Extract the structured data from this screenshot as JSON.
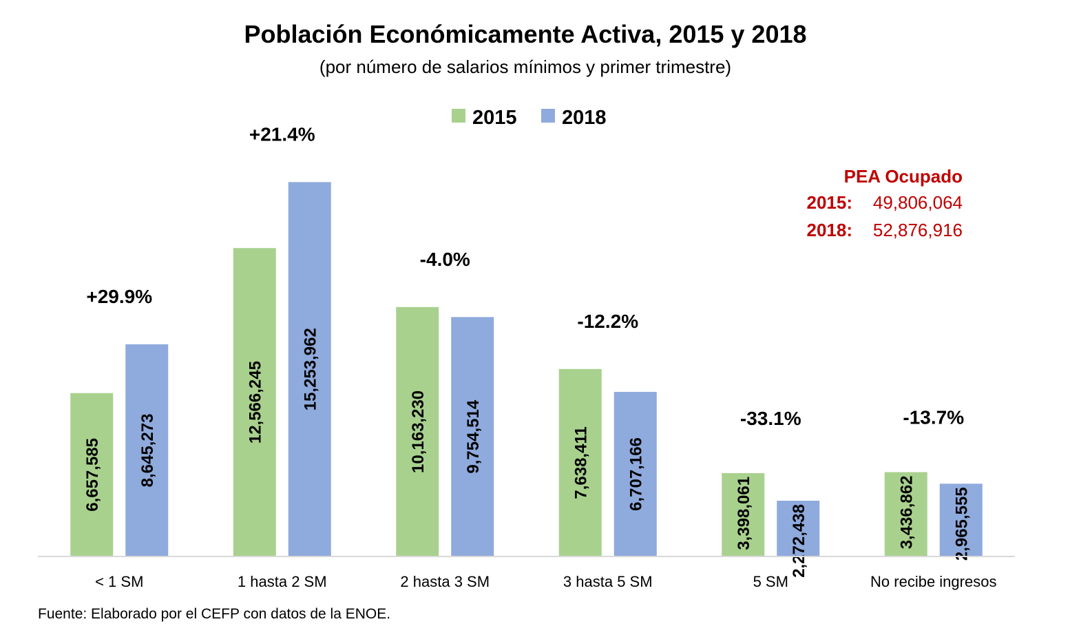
{
  "chart_data": {
    "type": "bar",
    "title": "Población Económicamente Activa, 2015 y 2018",
    "subtitle": "(por número de salarios mínimos y primer trimestre)",
    "categories": [
      "< 1 SM",
      "1 hasta 2 SM",
      "2 hasta 3 SM",
      "3 hasta 5 SM",
      "5 SM",
      "No recibe ingresos"
    ],
    "series": [
      {
        "name": "2015",
        "color": "#a9d18e",
        "values": [
          6657585,
          12566245,
          10163230,
          7638411,
          3398061,
          3436862
        ],
        "labels": [
          "6,657,585",
          "12,566,245",
          "10,163,230",
          "7,638,411",
          "3,398,061",
          "3,436,862"
        ]
      },
      {
        "name": "2018",
        "color": "#8faadc",
        "values": [
          8645273,
          15253962,
          9754514,
          6707166,
          2272438,
          2965555
        ],
        "labels": [
          "8,645,273",
          "15,253,962",
          "9,754,514",
          "6,707,166",
          "2,272,438",
          "2,965,555"
        ]
      }
    ],
    "changes": [
      "+29.9%",
      "+21.4%",
      "-4.0%",
      "-12.2%",
      "-33.1%",
      "-13.7%"
    ],
    "ylim": [
      0,
      16500000
    ],
    "xlabel": "",
    "ylabel": "",
    "grid": false,
    "legend": "top-center"
  },
  "annotation": {
    "heading": "PEA Ocupado",
    "rows": [
      {
        "year": "2015:",
        "value": "49,806,064"
      },
      {
        "year": "2018:",
        "value": "52,876,916"
      }
    ],
    "color": "#c00000"
  },
  "source": "Fuente: Elaborado por el CEFP con datos de la ENOE."
}
